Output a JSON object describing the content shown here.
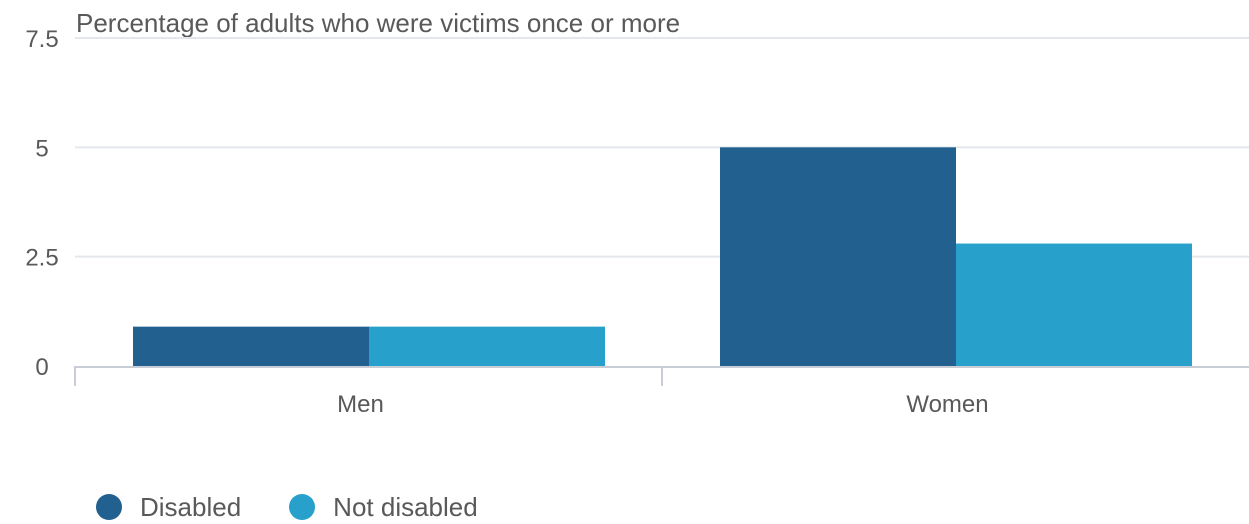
{
  "chart_data": {
    "type": "bar",
    "title": "Percentage of adults who were victims once or more",
    "categories": [
      "Men",
      "Women"
    ],
    "series": [
      {
        "name": "Disabled",
        "values": [
          0.9,
          5.0
        ],
        "color": "#22608f"
      },
      {
        "name": "Not disabled",
        "values": [
          0.9,
          2.8
        ],
        "color": "#27a0cc"
      }
    ],
    "yticks": [
      "0",
      "2.5",
      "5",
      "7.5"
    ],
    "ylim": [
      0,
      7.5
    ],
    "grid": true,
    "legend_position": "bottom-left"
  }
}
